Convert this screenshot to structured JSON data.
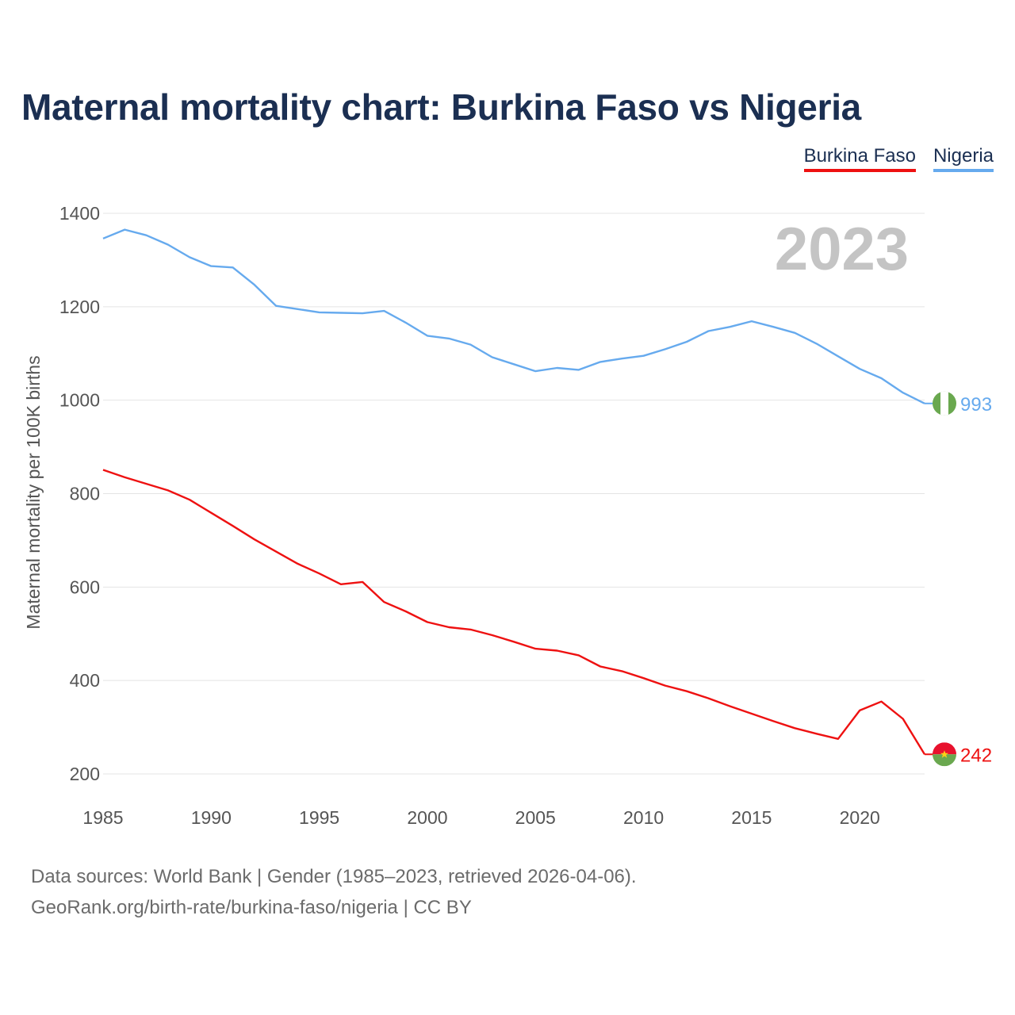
{
  "title": "Maternal mortality chart: Burkina Faso vs Nigeria",
  "legend": [
    {
      "label": "Burkina Faso",
      "color": "#ee1111"
    },
    {
      "label": "Nigeria",
      "color": "#66aaee"
    }
  ],
  "year_watermark": "2023",
  "footer": {
    "line1": "Data sources: World Bank | Gender (1985–2023, retrieved 2026-04-06).",
    "line2": "GeoRank.org/birth-rate/burkina-faso/nigeria | CC BY"
  },
  "chart_data": {
    "type": "line",
    "title": "Maternal mortality chart: Burkina Faso vs Nigeria",
    "xlabel": "",
    "ylabel": "Maternal mortality per 100K births",
    "xlim": [
      1985,
      2023
    ],
    "ylim": [
      200,
      1400
    ],
    "xticks": [
      1985,
      1990,
      1995,
      2000,
      2005,
      2010,
      2015,
      2020
    ],
    "yticks": [
      200,
      400,
      600,
      800,
      1000,
      1200,
      1400
    ],
    "grid": true,
    "legend_position": "top-right",
    "x": [
      1985,
      1986,
      1987,
      1988,
      1989,
      1990,
      1991,
      1992,
      1993,
      1994,
      1995,
      1996,
      1997,
      1998,
      1999,
      2000,
      2001,
      2002,
      2003,
      2004,
      2005,
      2006,
      2007,
      2008,
      2009,
      2010,
      2011,
      2012,
      2013,
      2014,
      2015,
      2016,
      2017,
      2018,
      2019,
      2020,
      2021,
      2022,
      2023
    ],
    "series": [
      {
        "name": "Burkina Faso",
        "color": "#ee1111",
        "flag": "burkina-faso-flag",
        "end_label": "242",
        "values": [
          851,
          835,
          821,
          807,
          787,
          759,
          731,
          702,
          676,
          650,
          629,
          606,
          611,
          568,
          548,
          525,
          514,
          509,
          497,
          483,
          468,
          464,
          454,
          430,
          420,
          405,
          389,
          377,
          362,
          345,
          329,
          313,
          298,
          286,
          275,
          336,
          355,
          318,
          242
        ]
      },
      {
        "name": "Nigeria",
        "color": "#66aaee",
        "flag": "nigeria-flag",
        "end_label": "993",
        "values": [
          1346,
          1365,
          1353,
          1333,
          1306,
          1287,
          1284,
          1247,
          1202,
          1195,
          1188,
          1187,
          1186,
          1191,
          1166,
          1138,
          1132,
          1119,
          1092,
          1077,
          1062,
          1069,
          1065,
          1082,
          1089,
          1095,
          1109,
          1125,
          1148,
          1157,
          1169,
          1157,
          1144,
          1121,
          1094,
          1067,
          1047,
          1016,
          993
        ]
      }
    ]
  }
}
